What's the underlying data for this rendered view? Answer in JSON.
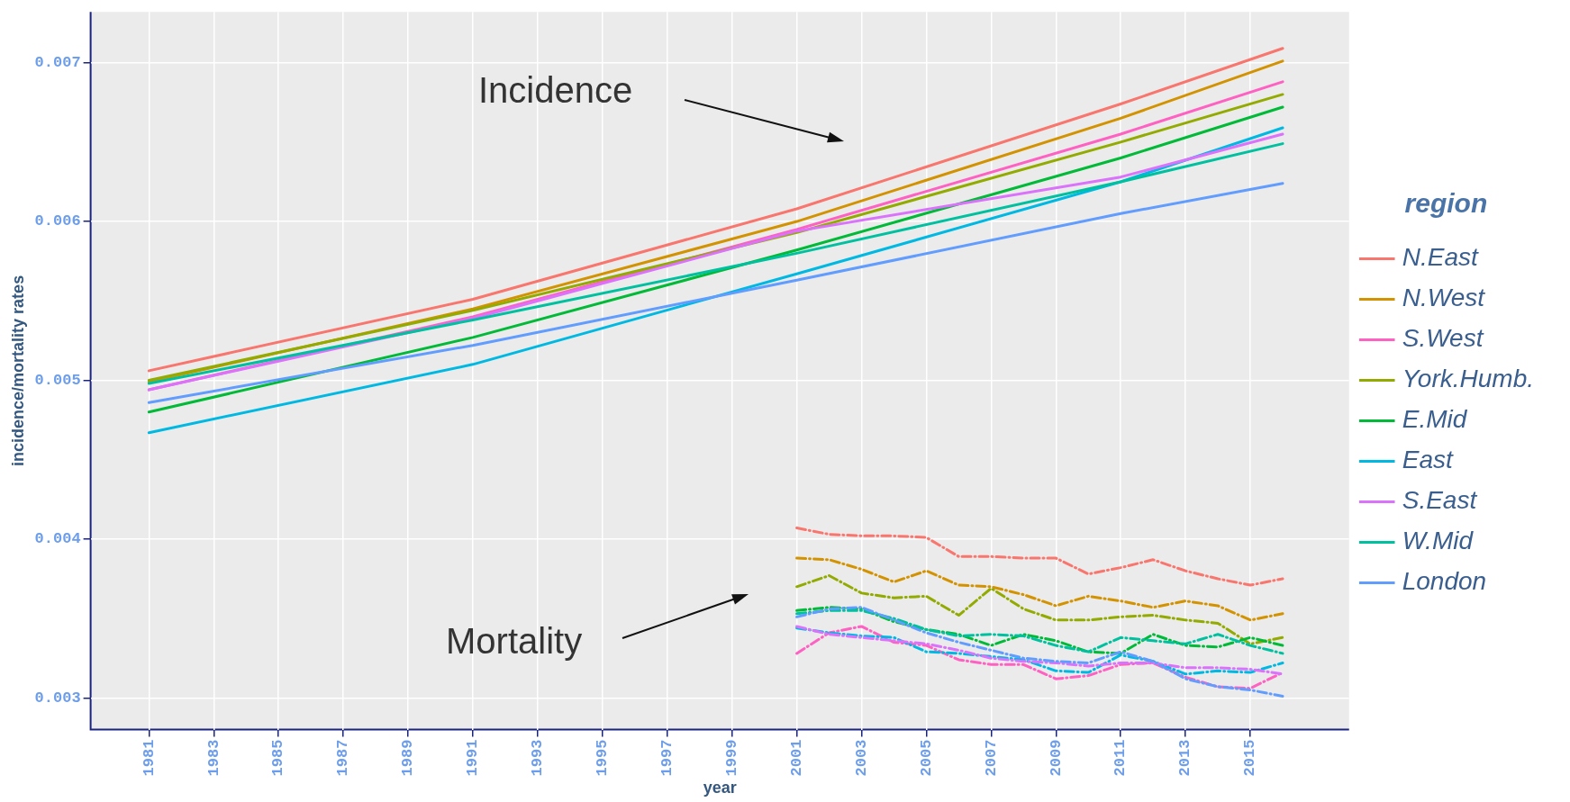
{
  "chart_data": {
    "type": "line",
    "xlabel": "year",
    "ylabel": "incidence/mortality rates",
    "legend_title": "region",
    "xlim": [
      1979.2,
      2018.05
    ],
    "ylim": [
      0.0028,
      0.00732
    ],
    "xticks": [
      1981,
      1983,
      1985,
      1987,
      1989,
      1991,
      1993,
      1995,
      1997,
      1999,
      2001,
      2003,
      2005,
      2007,
      2009,
      2011,
      2013,
      2015
    ],
    "yticks": [
      0.003,
      0.004,
      0.005,
      0.006,
      0.007
    ],
    "grid": true,
    "legend": "right",
    "marker": "none",
    "annotations": [
      "Incidence",
      "Mortality"
    ],
    "series": [
      {
        "name": "N.East",
        "color": "#f8766d",
        "line_style": "solid",
        "x": [
          1981,
          1991,
          2001,
          2011,
          2016
        ],
        "values": [
          0.00506,
          0.00551,
          0.00608,
          0.00674,
          0.00709
        ]
      },
      {
        "name": "N.West",
        "color": "#d39200",
        "line_style": "solid",
        "x": [
          1981,
          1991,
          2001,
          2011,
          2016
        ],
        "values": [
          0.00499,
          0.00545,
          0.006,
          0.00665,
          0.00701
        ]
      },
      {
        "name": "S.West",
        "color": "#ff61c3",
        "line_style": "solid",
        "x": [
          1981,
          1991,
          2001,
          2011,
          2016
        ],
        "values": [
          0.00494,
          0.0054,
          0.00595,
          0.00655,
          0.00688
        ]
      },
      {
        "name": "York.Humb.",
        "color": "#93aa00",
        "line_style": "solid",
        "x": [
          1981,
          1991,
          2001,
          2011,
          2016
        ],
        "values": [
          0.005,
          0.00544,
          0.00593,
          0.0065,
          0.0068
        ]
      },
      {
        "name": "E.Mid",
        "color": "#00ba38",
        "line_style": "solid",
        "x": [
          1981,
          1991,
          2001,
          2011,
          2016
        ],
        "values": [
          0.0048,
          0.00527,
          0.00582,
          0.0064,
          0.00672
        ]
      },
      {
        "name": "East",
        "color": "#00b9e3",
        "line_style": "solid",
        "x": [
          1981,
          1991,
          2001,
          2011,
          2016
        ],
        "values": [
          0.00467,
          0.0051,
          0.00567,
          0.00625,
          0.00659
        ]
      },
      {
        "name": "S.East",
        "color": "#db72fb",
        "line_style": "solid",
        "x": [
          1981,
          1991,
          2001,
          2011,
          2016
        ],
        "values": [
          0.00494,
          0.00539,
          0.00594,
          0.00628,
          0.00655
        ]
      },
      {
        "name": "W.Mid",
        "color": "#00c19f",
        "line_style": "solid",
        "x": [
          1981,
          1991,
          2001,
          2011,
          2016
        ],
        "values": [
          0.00498,
          0.00538,
          0.0058,
          0.00625,
          0.00649
        ]
      },
      {
        "name": "London",
        "color": "#619cff",
        "line_style": "solid",
        "x": [
          1981,
          1991,
          2001,
          2011,
          2016
        ],
        "values": [
          0.00486,
          0.00522,
          0.00563,
          0.00605,
          0.00624
        ]
      },
      {
        "color": "#f8766d",
        "line_style": "dashed",
        "x": [
          2001,
          2002,
          2003,
          2004,
          2005,
          2006,
          2007,
          2008,
          2009,
          2010,
          2011,
          2012,
          2013,
          2014,
          2015,
          2016
        ],
        "values": [
          0.00407,
          0.00403,
          0.00402,
          0.00402,
          0.00401,
          0.00389,
          0.00389,
          0.00388,
          0.00388,
          0.00378,
          0.00382,
          0.00387,
          0.0038,
          0.00375,
          0.00371,
          0.00375
        ]
      },
      {
        "color": "#d39200",
        "line_style": "dashed",
        "x": [
          2001,
          2002,
          2003,
          2004,
          2005,
          2006,
          2007,
          2008,
          2009,
          2010,
          2011,
          2012,
          2013,
          2014,
          2015,
          2016
        ],
        "values": [
          0.00388,
          0.00387,
          0.00381,
          0.00373,
          0.0038,
          0.00371,
          0.0037,
          0.00365,
          0.00358,
          0.00364,
          0.00361,
          0.00357,
          0.00361,
          0.00358,
          0.00349,
          0.00353
        ]
      },
      {
        "color": "#ff61c3",
        "line_style": "dashed",
        "x": [
          2001,
          2002,
          2003,
          2004,
          2005,
          2006,
          2007,
          2008,
          2009,
          2010,
          2011,
          2012,
          2013,
          2014,
          2015,
          2016
        ],
        "values": [
          0.00328,
          0.00341,
          0.00345,
          0.00335,
          0.00333,
          0.00324,
          0.00321,
          0.00321,
          0.00312,
          0.00314,
          0.00321,
          0.00322,
          0.00313,
          0.00307,
          0.00306,
          0.00316
        ]
      },
      {
        "color": "#93aa00",
        "line_style": "dashed",
        "x": [
          2001,
          2002,
          2003,
          2004,
          2005,
          2006,
          2007,
          2008,
          2009,
          2010,
          2011,
          2012,
          2013,
          2014,
          2015,
          2016
        ],
        "values": [
          0.0037,
          0.00377,
          0.00366,
          0.00363,
          0.00364,
          0.00352,
          0.00369,
          0.00356,
          0.00349,
          0.00349,
          0.00351,
          0.00352,
          0.00349,
          0.00347,
          0.00334,
          0.00338
        ]
      },
      {
        "color": "#00ba38",
        "line_style": "dashed",
        "x": [
          2001,
          2002,
          2003,
          2004,
          2005,
          2006,
          2007,
          2008,
          2009,
          2010,
          2011,
          2012,
          2013,
          2014,
          2015,
          2016
        ],
        "values": [
          0.00355,
          0.00357,
          0.00356,
          0.00348,
          0.00343,
          0.0034,
          0.00333,
          0.0034,
          0.00336,
          0.00329,
          0.00328,
          0.0034,
          0.00333,
          0.00332,
          0.00338,
          0.00333
        ]
      },
      {
        "color": "#00b9e3",
        "line_style": "dashed",
        "x": [
          2001,
          2002,
          2003,
          2004,
          2005,
          2006,
          2007,
          2008,
          2009,
          2010,
          2011,
          2012,
          2013,
          2014,
          2015,
          2016
        ],
        "values": [
          0.00344,
          0.00341,
          0.00339,
          0.00338,
          0.00329,
          0.00328,
          0.00326,
          0.00324,
          0.00317,
          0.00316,
          0.00327,
          0.00323,
          0.00315,
          0.00317,
          0.00316,
          0.00322
        ]
      },
      {
        "color": "#db72fb",
        "line_style": "dashed",
        "x": [
          2001,
          2002,
          2003,
          2004,
          2005,
          2006,
          2007,
          2008,
          2009,
          2010,
          2011,
          2012,
          2013,
          2014,
          2015,
          2016
        ],
        "values": [
          0.00345,
          0.0034,
          0.00338,
          0.00336,
          0.00334,
          0.0033,
          0.00325,
          0.00323,
          0.00322,
          0.0032,
          0.00322,
          0.00322,
          0.00319,
          0.00319,
          0.00318,
          0.00315
        ]
      },
      {
        "color": "#00c19f",
        "line_style": "dashed",
        "x": [
          2001,
          2002,
          2003,
          2004,
          2005,
          2006,
          2007,
          2008,
          2009,
          2010,
          2011,
          2012,
          2013,
          2014,
          2015,
          2016
        ],
        "values": [
          0.00353,
          0.00355,
          0.00355,
          0.0035,
          0.00343,
          0.00339,
          0.0034,
          0.00339,
          0.00333,
          0.00329,
          0.00338,
          0.00336,
          0.00334,
          0.0034,
          0.00333,
          0.00328
        ]
      },
      {
        "color": "#619cff",
        "line_style": "dashed",
        "x": [
          2001,
          2002,
          2003,
          2004,
          2005,
          2006,
          2007,
          2008,
          2009,
          2010,
          2011,
          2012,
          2013,
          2014,
          2015,
          2016
        ],
        "values": [
          0.00351,
          0.00356,
          0.00357,
          0.00349,
          0.00341,
          0.00335,
          0.0033,
          0.00325,
          0.00323,
          0.00322,
          0.00329,
          0.00323,
          0.00312,
          0.00307,
          0.00305,
          0.00301
        ]
      }
    ]
  }
}
